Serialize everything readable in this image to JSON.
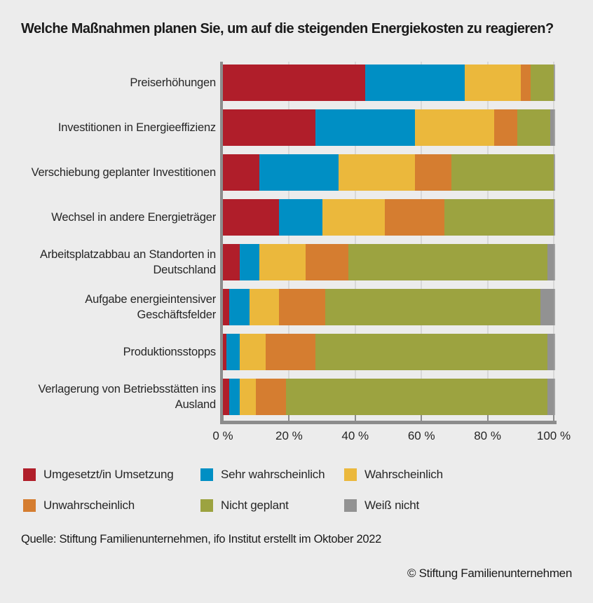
{
  "title": "Welche Maßnahmen planen Sie, um auf die steigenden Energiekosten zu reagieren?",
  "chart_data": {
    "type": "bar",
    "orientation": "horizontal",
    "stacked": true,
    "unit": "%",
    "categories": [
      "Preiserhöhungen",
      "Investitionen in Energieeffizienz",
      "Verschiebung geplanter Investitionen",
      "Wechsel in andere Energieträger",
      "Arbeitsplatzabbau an Standorten in Deutschland",
      "Aufgabe energieintensiver Geschäftsfelder",
      "Produktionsstopps",
      "Verlagerung von Betriebsstätten ins Ausland"
    ],
    "series": [
      {
        "name": "Umgesetzt/in Umsetzung",
        "color": "#b01e2a",
        "values": [
          43,
          28,
          11,
          17,
          5,
          2,
          1,
          2
        ]
      },
      {
        "name": "Sehr wahrscheinlich",
        "color": "#008fc4",
        "values": [
          30,
          30,
          24,
          13,
          6,
          6,
          4,
          3
        ]
      },
      {
        "name": "Wahrscheinlich",
        "color": "#ebb83c",
        "values": [
          17,
          24,
          23,
          19,
          14,
          9,
          8,
          5
        ]
      },
      {
        "name": "Unwahrscheinlich",
        "color": "#d57d30",
        "values": [
          3,
          7,
          11,
          18,
          13,
          14,
          15,
          9
        ]
      },
      {
        "name": "Nicht geplant",
        "color": "#9ca340",
        "values": [
          7,
          10,
          31,
          33,
          60,
          65,
          70,
          79
        ]
      },
      {
        "name": "Weiß nicht",
        "color": "#929292",
        "values": [
          0,
          1,
          0,
          0,
          2,
          4,
          2,
          2
        ]
      }
    ],
    "x_axis": {
      "ticks": [
        "0 %",
        "20 %",
        "40 %",
        "60 %",
        "80 %",
        "100 %"
      ],
      "tick_values": [
        0,
        20,
        40,
        60,
        80,
        100
      ],
      "range": [
        0,
        100
      ],
      "grid": true
    },
    "legend_position": "bottom"
  },
  "footer": {
    "source": "Quelle: Stiftung Familienunternehmen, ifo Institut erstellt im Oktober 2022",
    "copyright": "© Stiftung Familienunternehmen"
  },
  "colors": {
    "background": "#ececec",
    "axis": "#8c8c8c",
    "gridline": "#d8d8d8",
    "title_text": "#1a1a1a",
    "label_text": "#262626"
  }
}
